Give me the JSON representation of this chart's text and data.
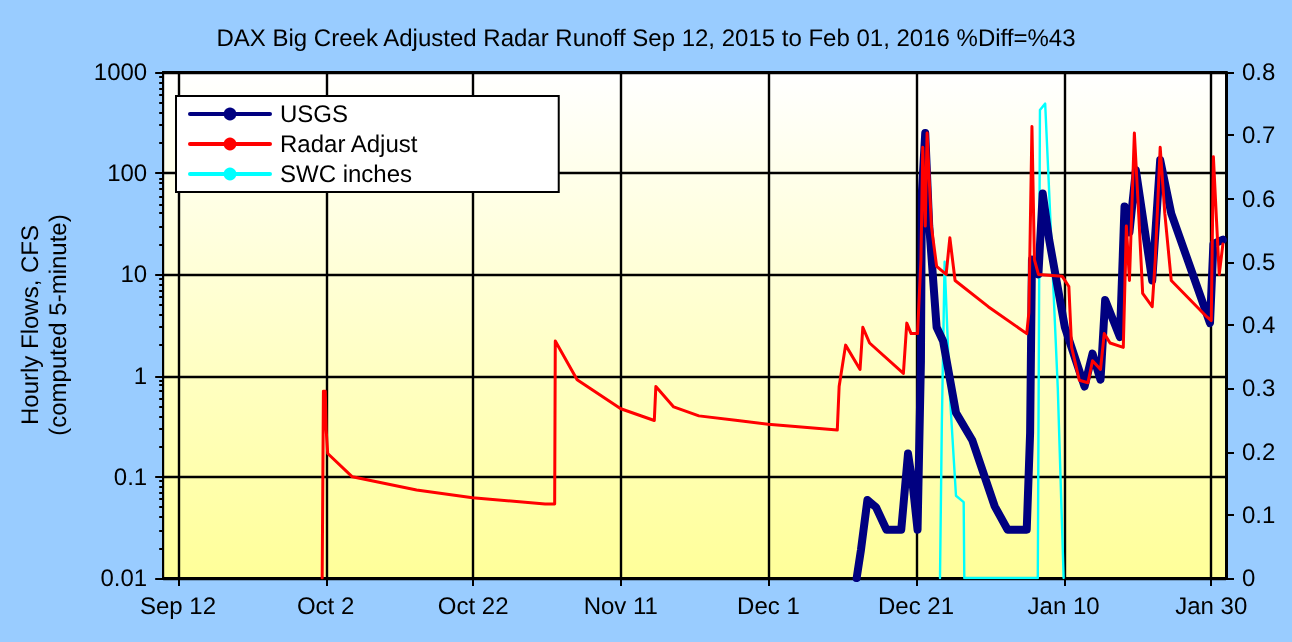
{
  "chart_data": {
    "type": "line",
    "title": "DAX Big Creek Adjusted Radar Runoff Sep 12, 2015 to Feb 01, 2016 %Diff=%43",
    "ylabel": "Hourly Flows, CFS\n(computed 5-minute)",
    "log": "y",
    "grid": true,
    "legend": "top left",
    "marker": "none",
    "line_style": "solid",
    "xlim": [
      "2015-09-10",
      "2016-02-01"
    ],
    "xticks": [
      {
        "value": "2015-09-12",
        "label": "Sep 12"
      },
      {
        "value": "2015-10-02",
        "label": "Oct 2"
      },
      {
        "value": "2015-10-22",
        "label": "Oct 22"
      },
      {
        "value": "2015-11-11",
        "label": "Nov 11"
      },
      {
        "value": "2015-12-01",
        "label": "Dec 1"
      },
      {
        "value": "2015-12-21",
        "label": "Dec 21"
      },
      {
        "value": "2016-01-10",
        "label": "Jan 10"
      },
      {
        "value": "2016-01-30",
        "label": "Jan 30"
      }
    ],
    "ylim": [
      0.01,
      1000
    ],
    "yticks": [
      0.01,
      0.1,
      1,
      10,
      100,
      1000
    ],
    "y2lim": [
      0,
      0.8
    ],
    "y2ticks": [
      0,
      0.1,
      0.2,
      0.3,
      0.4,
      0.5,
      0.6,
      0.7,
      0.8
    ],
    "series": [
      {
        "name": "Radar Adjust",
        "color": "#ff0000",
        "x": [
          "2015-10-01T13:00",
          "2015-10-01T17:00",
          "2015-10-01T23:00",
          "2015-10-02T02:00",
          "2015-10-02T07:00",
          "2015-10-05T15:00",
          "2015-10-14T08:00",
          "2015-10-21T22:00",
          "2015-10-31T18:00",
          "2015-11-02T01:00",
          "2015-11-02T03:00",
          "2015-11-05T02:00",
          "2015-11-11T00:00",
          "2015-11-15T13:00",
          "2015-11-15T18:00",
          "2015-11-18T04:00",
          "2015-11-21T14:00",
          "2015-11-26T20:00",
          "2015-11-30T23:00",
          "2015-12-10T08:00",
          "2015-12-10T14:00",
          "2015-12-11T11:00",
          "2015-12-13T10:00",
          "2015-12-13T19:00",
          "2015-12-14T17:00",
          "2015-12-19T07:00",
          "2015-12-19T18:00",
          "2015-12-20T08:00",
          "2015-12-21T05:00",
          "2015-12-21T16:00",
          "2015-12-21T22:00",
          "2015-12-22T06:00",
          "2015-12-22T12:00",
          "2015-12-23T02:00",
          "2015-12-23T19:00",
          "2015-12-25T02:00",
          "2015-12-25T14:00",
          "2015-12-26T07:00",
          "2015-12-30T19:00",
          "2016-01-05T00:00",
          "2016-01-05T07:00",
          "2016-01-05T17:00",
          "2016-01-06T01:00",
          "2016-01-06T14:00",
          "2016-01-09T19:00",
          "2016-01-10T17:00",
          "2016-01-11T02:00",
          "2016-01-12T03:00",
          "2016-01-13T07:00",
          "2016-01-13T22:00",
          "2016-01-15T00:00",
          "2016-01-15T12:00",
          "2016-01-16T07:00",
          "2016-01-18T02:00",
          "2016-01-18T12:00",
          "2016-01-18T22:00",
          "2016-01-19T14:00",
          "2016-01-20T05:00",
          "2016-01-20T17:00",
          "2016-01-22T00:00",
          "2016-01-22T10:00",
          "2016-01-23T02:00",
          "2016-01-23T17:00",
          "2016-01-24T14:00",
          "2016-01-29T10:00",
          "2016-01-30T00:00",
          "2016-01-30T07:00",
          "2016-01-30T17:00",
          "2016-01-31T02:00",
          "2016-01-31T14:00"
        ],
        "values": [
          0.01,
          0.7,
          0.7,
          0.29,
          0.17,
          0.1,
          0.074,
          0.062,
          0.054,
          0.054,
          2.2,
          0.91,
          0.47,
          0.36,
          0.78,
          0.49,
          0.4,
          0.36,
          0.33,
          0.29,
          0.78,
          2.0,
          1.15,
          3.0,
          2.1,
          1.05,
          3.3,
          2.6,
          2.6,
          14,
          180,
          30,
          250,
          30,
          12,
          10,
          23,
          8.7,
          4.8,
          2.6,
          4.2,
          290,
          14,
          10,
          9.6,
          7.6,
          1.9,
          0.9,
          0.85,
          1.4,
          1.15,
          2.6,
          2.1,
          1.9,
          30,
          8.7,
          250,
          35,
          6.5,
          4.8,
          14,
          180,
          40,
          8.7,
          3.8,
          3.5,
          145,
          35,
          10,
          20
        ]
      },
      {
        "name": "SWC inches",
        "color": "#00ffff",
        "axis": "y2",
        "x": [
          "2015-12-24T06:00",
          "2015-12-24T12:00",
          "2015-12-24T21:00",
          "2015-12-25T14:00",
          "2015-12-26T10:00",
          "2015-12-27T11:00",
          "2015-12-27T13:00",
          "2016-01-06T12:00",
          "2016-01-06T19:00",
          "2016-01-07T12:00",
          "2016-01-08T01:00",
          "2016-01-09T05:00",
          "2016-01-10T00:00"
        ],
        "values": [
          0,
          0.245,
          0.5,
          0.29,
          0.13,
          0.12,
          0,
          0,
          0.74,
          0.75,
          0.61,
          0.3,
          0
        ]
      },
      {
        "name": "USGS",
        "color": "#000080",
        "x": [
          "2015-12-12T23:00",
          "2015-12-13T13:00",
          "2015-12-14T10:00",
          "2015-12-15T14:00",
          "2015-12-17T00:00",
          "2015-12-19T00:00",
          "2015-12-19T22:00",
          "2015-12-20T14:00",
          "2015-12-21T05:00",
          "2015-12-21T16:00",
          "2015-12-21T19:00",
          "2015-12-22T06:00",
          "2015-12-22T19:00",
          "2015-12-23T19:00",
          "2015-12-24T16:00",
          "2015-12-26T10:00",
          "2015-12-28T15:00",
          "2015-12-31T16:00",
          "2016-01-02T10:00",
          "2016-01-05T00:00",
          "2016-01-05T11:00",
          "2016-01-05T17:00",
          "2016-01-06T14:00",
          "2016-01-07T04:00",
          "2016-01-08T01:00",
          "2016-01-10T04:00",
          "2016-01-12T20:00",
          "2016-01-13T22:00",
          "2016-01-15T00:00",
          "2016-01-15T15:00",
          "2016-01-17T15:00",
          "2016-01-18T06:00",
          "2016-01-18T22:00",
          "2016-01-19T19:00",
          "2016-01-22T00:00",
          "2016-01-23T02:00",
          "2016-01-24T14:00",
          "2016-01-29T20:00",
          "2016-01-30T07:00",
          "2016-01-31T14:00"
        ],
        "values": [
          0.01,
          0.019,
          0.059,
          0.05,
          0.03,
          0.03,
          0.17,
          0.08,
          0.03,
          1.4,
          63,
          250,
          30,
          3.0,
          2.2,
          0.43,
          0.23,
          0.051,
          0.03,
          0.03,
          0.27,
          14,
          10,
          63,
          22,
          3.0,
          0.78,
          1.65,
          0.91,
          5.6,
          2.4,
          47,
          26,
          107,
          8.7,
          135,
          40,
          3.3,
          20,
          22
        ]
      }
    ]
  }
}
